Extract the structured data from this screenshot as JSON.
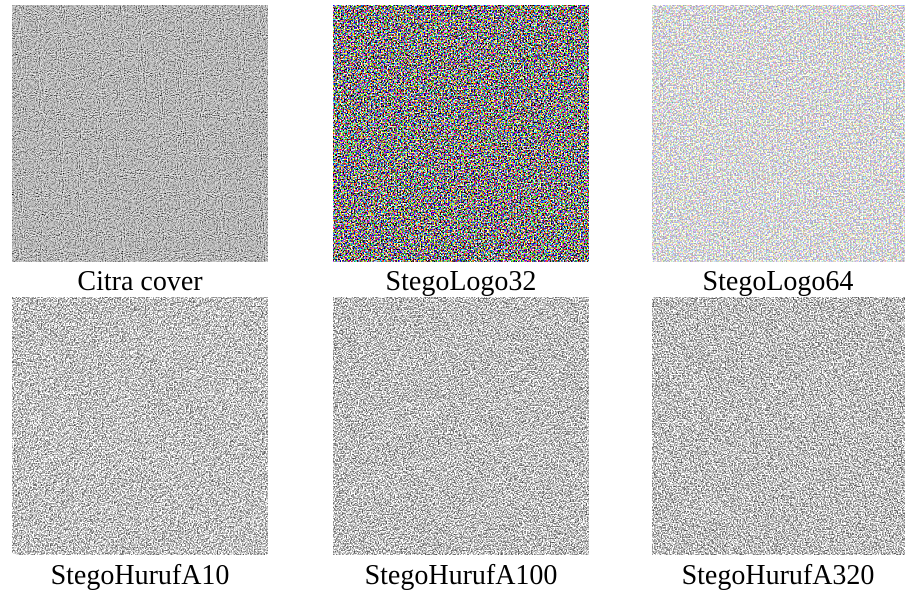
{
  "images": [
    {
      "caption": "Citra cover"
    },
    {
      "caption": "StegoLogo32"
    },
    {
      "caption": "StegoLogo64"
    },
    {
      "caption": "StegoHurufA10"
    },
    {
      "caption": "StegoHurufA100"
    },
    {
      "caption": "StegoHurufA320"
    }
  ]
}
